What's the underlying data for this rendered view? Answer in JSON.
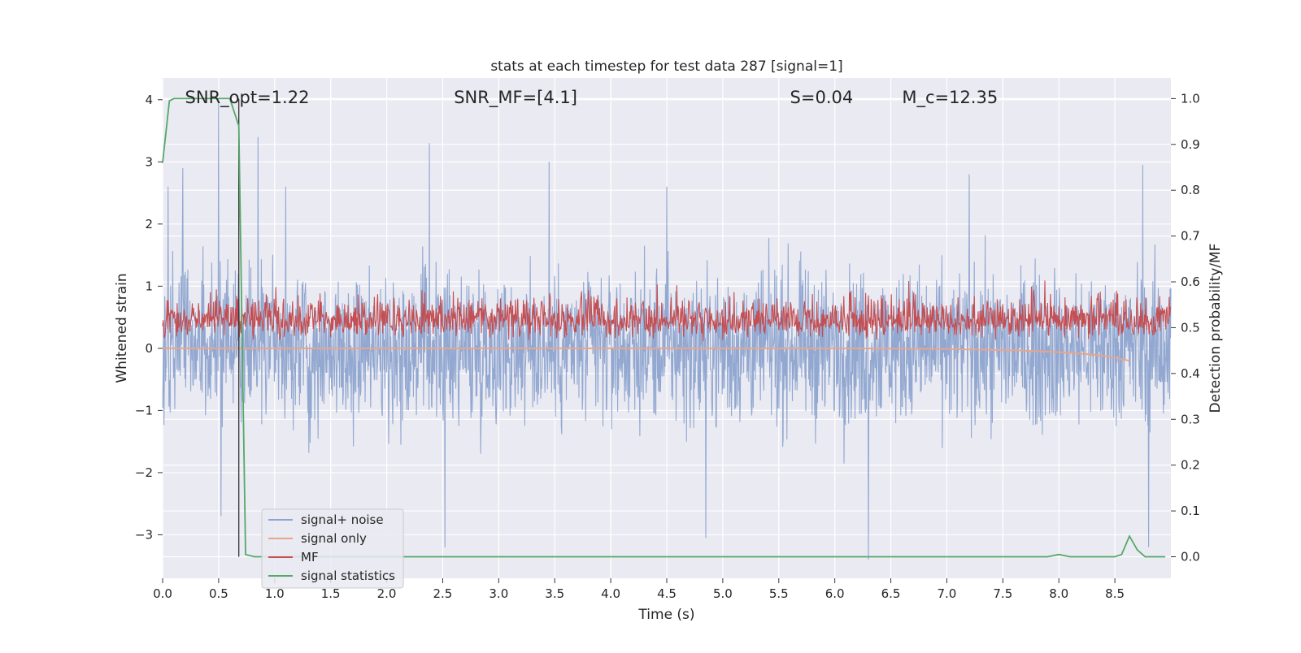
{
  "chart_data": {
    "type": "line",
    "title": "stats at each timestep for test data 287 [signal=1]",
    "xlabel": "Time (s)",
    "ylabel_left": "Whitened strain",
    "ylabel_right": "Detection probability/MF",
    "xlim": [
      0,
      9.0
    ],
    "ylim_left": [
      -3.7,
      4.35
    ],
    "ylim_right": [
      -0.047,
      1.045
    ],
    "x_ticks": [
      0,
      0.5,
      1,
      1.5,
      2,
      2.5,
      3,
      3.5,
      4,
      4.5,
      5,
      5.5,
      6,
      6.5,
      7,
      7.5,
      8,
      8.5
    ],
    "x_tick_labels": [
      "0.0",
      "0.5",
      "1.0",
      "1.5",
      "2.0",
      "2.5",
      "3.0",
      "3.5",
      "4.0",
      "4.5",
      "5.0",
      "5.5",
      "6.0",
      "6.5",
      "7.0",
      "7.5",
      "8.0",
      "8.5"
    ],
    "y_left_ticks": [
      -3,
      -2,
      -1,
      0,
      1,
      2,
      3,
      4
    ],
    "y_left_tick_labels": [
      "−3",
      "−2",
      "−1",
      "0",
      "1",
      "2",
      "3",
      "4"
    ],
    "y_right_ticks": [
      0,
      0.1,
      0.2,
      0.3,
      0.4,
      0.5,
      0.6,
      0.7,
      0.8,
      0.9,
      1.0
    ],
    "y_right_tick_labels": [
      "0.0",
      "0.1",
      "0.2",
      "0.3",
      "0.4",
      "0.5",
      "0.6",
      "0.7",
      "0.8",
      "0.9",
      "1.0"
    ],
    "grid": true,
    "legend_position": "bottom-left",
    "annotations": [
      {
        "text": "SNR_opt=1.22",
        "x": 0.2,
        "y": 4.0
      },
      {
        "text": "SNR_MF=[4.1]",
        "x": 2.6,
        "y": 4.0
      },
      {
        "text": "S=0.04",
        "x": 5.6,
        "y": 4.0
      },
      {
        "text": "M_c=12.35",
        "x": 6.6,
        "y": 4.0
      }
    ],
    "vertical_marker": {
      "x": 0.68
    },
    "series": [
      {
        "name": "signal+ noise",
        "axis": "left",
        "color": "#8da4cf",
        "typical_range": [
          -1.8,
          1.8
        ],
        "peak_values": [
          {
            "x": 0.05,
            "y": 2.6
          },
          {
            "x": 0.18,
            "y": 2.9
          },
          {
            "x": 0.5,
            "y": 4.0
          },
          {
            "x": 0.85,
            "y": 3.4
          },
          {
            "x": 1.1,
            "y": 2.6
          },
          {
            "x": 2.38,
            "y": 3.3
          },
          {
            "x": 3.45,
            "y": 3.0
          },
          {
            "x": 4.5,
            "y": 2.6
          },
          {
            "x": 7.2,
            "y": 2.8
          },
          {
            "x": 8.75,
            "y": 2.95
          },
          {
            "x": 0.52,
            "y": -2.7
          },
          {
            "x": 2.52,
            "y": -3.2
          },
          {
            "x": 4.85,
            "y": -3.05
          },
          {
            "x": 6.3,
            "y": -3.4
          },
          {
            "x": 8.8,
            "y": -3.2
          }
        ]
      },
      {
        "name": "signal only",
        "axis": "left",
        "color": "#e8a58c",
        "x": [
          0,
          6.0,
          7.0,
          7.6,
          8.0,
          8.3,
          8.5,
          8.63
        ],
        "y": [
          0,
          0,
          -0.01,
          -0.03,
          -0.06,
          -0.1,
          -0.15,
          -0.2
        ]
      },
      {
        "name": "MF",
        "axis": "right",
        "color": "#c44e52",
        "baseline": 0.5,
        "typical_range": [
          0.46,
          0.6
        ],
        "peak": 0.64
      },
      {
        "name": "signal statistics",
        "axis": "right",
        "color": "#55a868",
        "x": [
          0,
          0.06,
          0.1,
          0.6,
          0.68,
          0.74,
          0.82,
          7.9,
          8.0,
          8.1,
          8.5,
          8.56,
          8.63,
          8.7,
          8.77,
          8.95
        ],
        "y": [
          0.86,
          0.995,
          1.0,
          1.0,
          0.94,
          0.005,
          0.0,
          0.0,
          0.005,
          0.0,
          0.0,
          0.005,
          0.045,
          0.015,
          0.0,
          0.0
        ]
      }
    ]
  }
}
